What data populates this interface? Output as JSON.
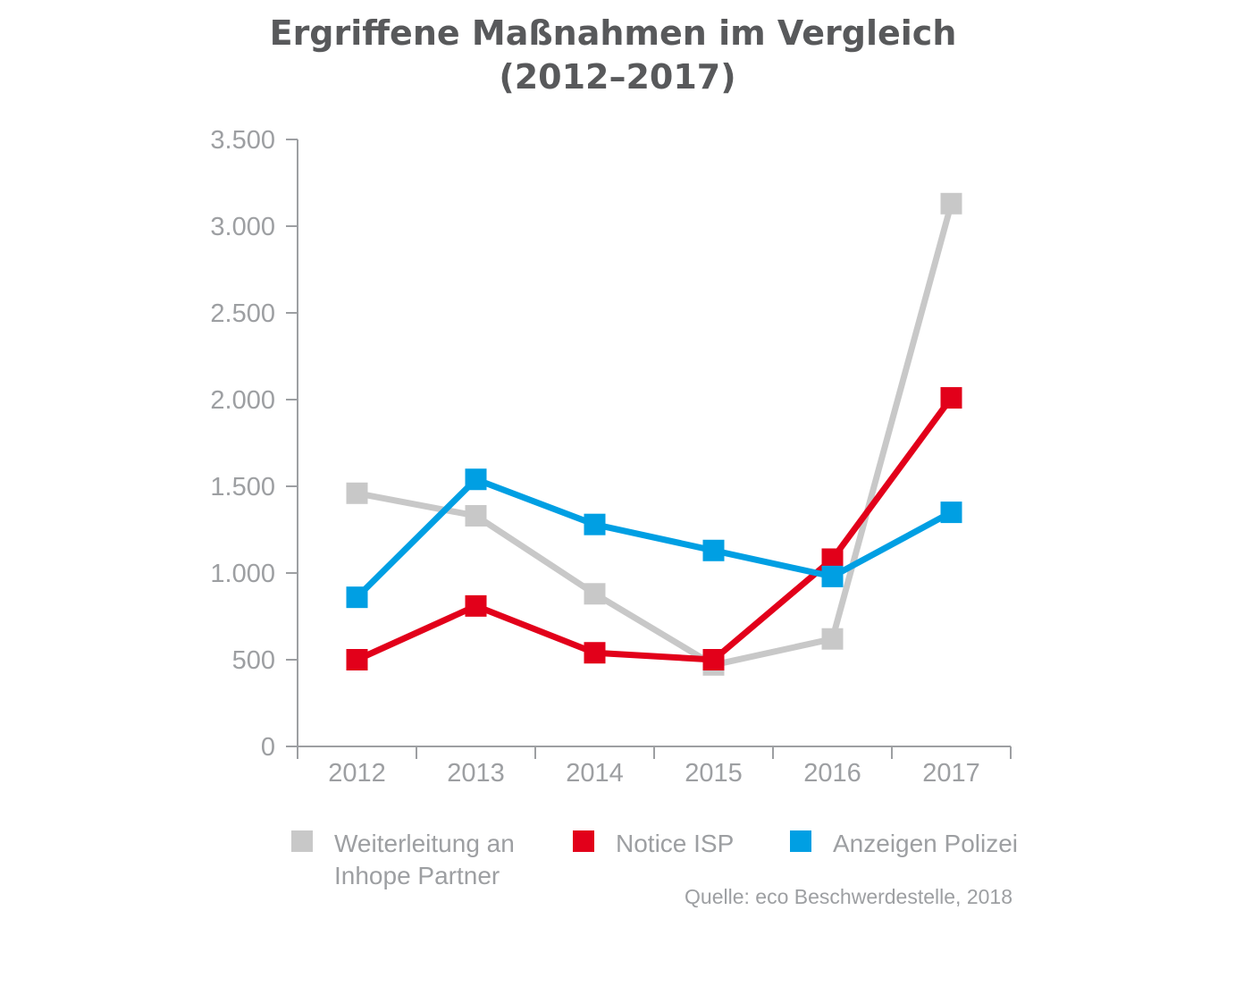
{
  "chart_data": {
    "type": "line",
    "title": "Ergriffene Maßnahmen im Vergleich",
    "subtitle": "(2012–2017)",
    "categories": [
      "2012",
      "2013",
      "2014",
      "2015",
      "2016",
      "2017"
    ],
    "ylim": [
      0,
      3500
    ],
    "yticks": [
      0,
      500,
      1000,
      1500,
      2000,
      2500,
      3000,
      3500
    ],
    "ytick_labels": [
      "0",
      "500",
      "1.000",
      "1.500",
      "2.000",
      "2.500",
      "3.000",
      "3.500"
    ],
    "grid": false,
    "legend_position": "bottom",
    "series": [
      {
        "name": "Weiterleitung an Inhope Partner",
        "name_lines": [
          "Weiterleitung an",
          "Inhope Partner"
        ],
        "color": "#c8c8c8",
        "values": [
          1460,
          1330,
          880,
          470,
          620,
          3130
        ]
      },
      {
        "name": "Notice ISP",
        "name_lines": [
          "Notice ISP"
        ],
        "color": "#e2001a",
        "values": [
          500,
          810,
          540,
          500,
          1080,
          2010
        ]
      },
      {
        "name": "Anzeigen Polizei",
        "name_lines": [
          "Anzeigen Polizei"
        ],
        "color": "#009fe3",
        "values": [
          860,
          1540,
          1280,
          1130,
          980,
          1350
        ]
      }
    ],
    "source": "Quelle: eco Beschwerdestelle, 2018",
    "axis_color": "#9d9fa2"
  }
}
